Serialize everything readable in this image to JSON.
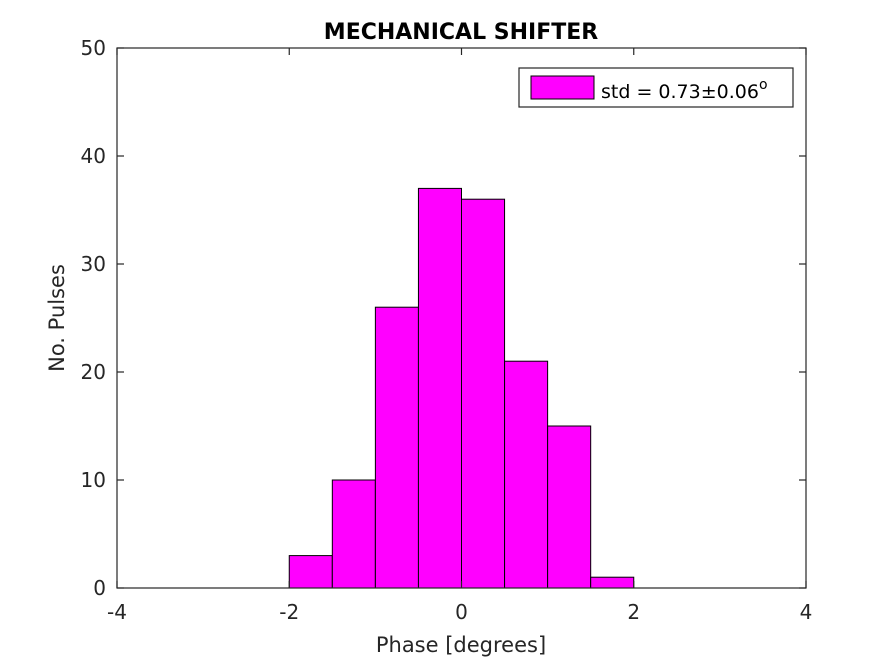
{
  "chart_data": {
    "type": "bar",
    "title": "MECHANICAL SHIFTER",
    "xlabel": "Phase [degrees]",
    "ylabel": "No. Pulses",
    "xlim": [
      -4,
      4
    ],
    "ylim": [
      0,
      50
    ],
    "xticks": [
      "-4",
      "-2",
      "0",
      "2",
      "4"
    ],
    "yticks": [
      "0",
      "10",
      "20",
      "30",
      "40",
      "50"
    ],
    "bin_edges": [
      -2,
      -1.5,
      -1,
      -0.5,
      0,
      0.5,
      1,
      1.5,
      2
    ],
    "values": [
      3,
      10,
      26,
      37,
      36,
      21,
      15,
      1
    ],
    "series": [
      {
        "name": "std = 0.73±0.06°",
        "color": "#ff00ff"
      }
    ],
    "legend": {
      "text_main": "std = 0.73±0.06",
      "superscript": "o",
      "placement": "top-right"
    },
    "grid": false,
    "bar_color": "#ff00ff",
    "edge_color": "#000000"
  }
}
